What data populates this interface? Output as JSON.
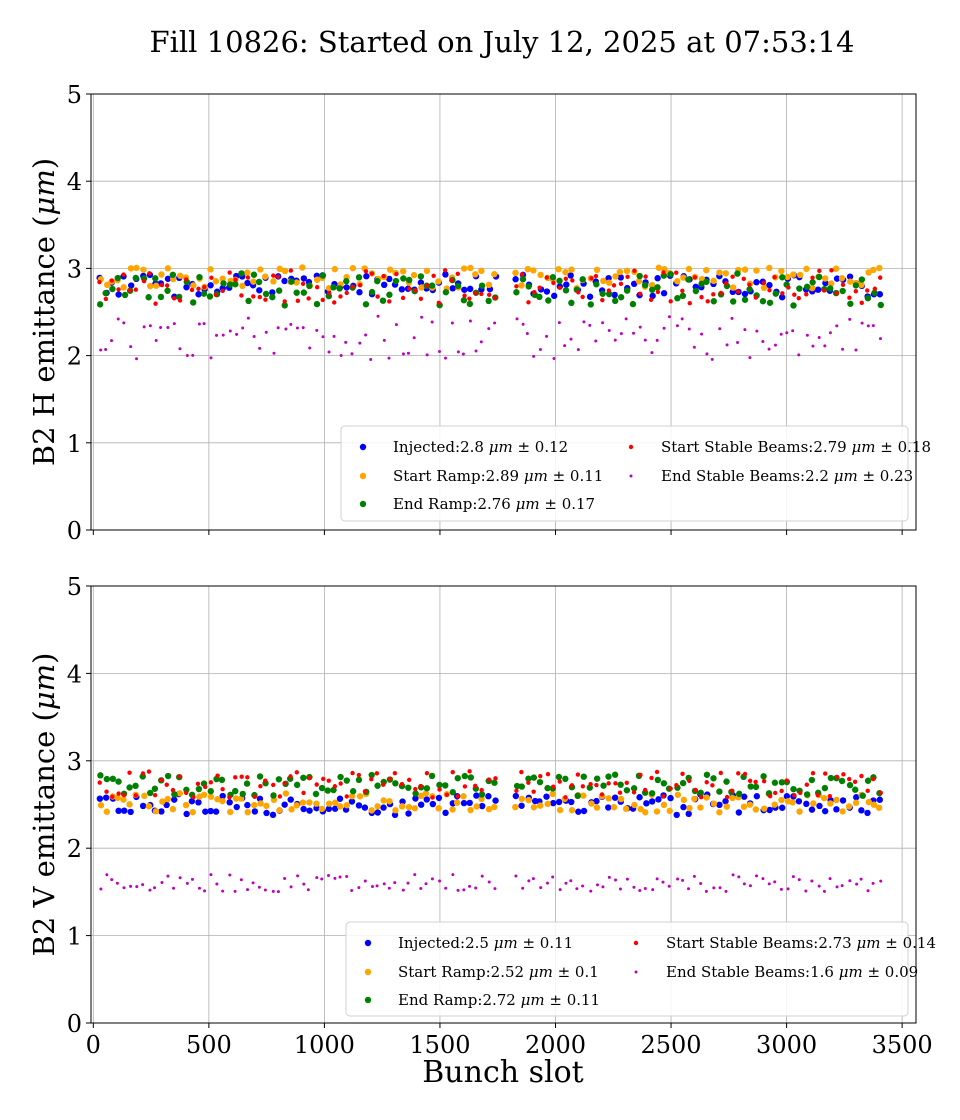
{
  "figure": {
    "title": "Fill 10826: Started on July 12, 2025 at 07:53:14",
    "xlabel": "Bunch slot"
  },
  "chart_data": [
    {
      "type": "scatter",
      "ylabel_prefix": "B2 H emittance (",
      "ylabel_unit": "μm",
      "ylabel_suffix": ")",
      "xlim": [
        -10,
        3560
      ],
      "ylim": [
        0,
        5
      ],
      "x_ticks": [
        0,
        500,
        1000,
        1500,
        2000,
        2500,
        3000,
        3500
      ],
      "y_ticks": [
        0,
        1,
        2,
        3,
        4,
        5
      ],
      "show_x_ticklabels": false,
      "grid": true,
      "legend_position": "lower right",
      "series": [
        {
          "name": "Injected",
          "label_value": "2.8",
          "label_unit": "μm",
          "label_err": "0.12",
          "color": "#0000ff",
          "marker": "medium",
          "mean": 2.8,
          "sd": 0.12
        },
        {
          "name": "Start Ramp",
          "label_value": "2.89",
          "label_unit": "μm",
          "label_err": "0.11",
          "color": "#ffa500",
          "marker": "medium",
          "mean": 2.89,
          "sd": 0.11
        },
        {
          "name": "End Ramp",
          "label_value": "2.76",
          "label_unit": "μm",
          "label_err": "0.17",
          "color": "#008000",
          "marker": "medium",
          "mean": 2.76,
          "sd": 0.17
        },
        {
          "name": "Start Stable Beams",
          "label_value": "2.79",
          "label_unit": "μm",
          "label_err": "0.18",
          "color": "#ff0000",
          "marker": "small",
          "mean": 2.79,
          "sd": 0.18
        },
        {
          "name": "End Stable Beams",
          "label_value": "2.2",
          "label_unit": "μm",
          "label_err": "0.23",
          "color": "#c000c0",
          "marker": "tiny",
          "mean": 2.2,
          "sd": 0.23
        }
      ]
    },
    {
      "type": "scatter",
      "ylabel_prefix": "B2 V emittance (",
      "ylabel_unit": "μm",
      "ylabel_suffix": ")",
      "xlim": [
        -10,
        3560
      ],
      "ylim": [
        0,
        5
      ],
      "x_ticks": [
        0,
        500,
        1000,
        1500,
        2000,
        2500,
        3000,
        3500
      ],
      "y_ticks": [
        0,
        1,
        2,
        3,
        4,
        5
      ],
      "show_x_ticklabels": true,
      "grid": true,
      "legend_position": "lower right",
      "series": [
        {
          "name": "Injected",
          "label_value": "2.5",
          "label_unit": "μm",
          "label_err": "0.11",
          "color": "#0000ff",
          "marker": "medium",
          "mean": 2.5,
          "sd": 0.11
        },
        {
          "name": "Start Ramp",
          "label_value": "2.52",
          "label_unit": "μm",
          "label_err": "0.1",
          "color": "#ffa500",
          "marker": "medium",
          "mean": 2.52,
          "sd": 0.1
        },
        {
          "name": "End Ramp",
          "label_value": "2.72",
          "label_unit": "μm",
          "label_err": "0.11",
          "color": "#008000",
          "marker": "medium",
          "mean": 2.72,
          "sd": 0.11
        },
        {
          "name": "Start Stable Beams",
          "label_value": "2.73",
          "label_unit": "μm",
          "label_err": "0.14",
          "color": "#ff0000",
          "marker": "small",
          "mean": 2.73,
          "sd": 0.14
        },
        {
          "name": "End Stable Beams",
          "label_value": "1.6",
          "label_unit": "μm",
          "label_err": "0.09",
          "color": "#c000c0",
          "marker": "tiny",
          "mean": 1.6,
          "sd": 0.09
        }
      ]
    }
  ]
}
